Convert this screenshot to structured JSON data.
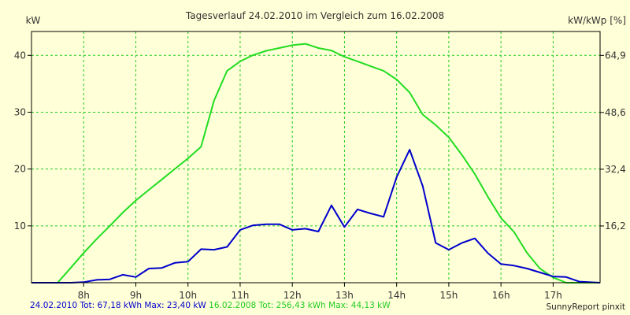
{
  "chart_data": {
    "type": "line",
    "title": "Tagesverlauf 24.02.2010 im Vergleich zum 16.02.2008",
    "y_left_unit": "kW",
    "y_right_unit": "kW/kWp [%]",
    "x_ticks": [
      "8h",
      "9h",
      "10h",
      "11h",
      "12h",
      "13h",
      "14h",
      "15h",
      "16h",
      "17h"
    ],
    "y_left_ticks": [
      "10",
      "20",
      "30",
      "40"
    ],
    "y_right_ticks": [
      "16,2",
      "32,4",
      "48,6",
      "64,9"
    ],
    "xlim": [
      7.0,
      17.9
    ],
    "ylim": [
      0,
      44.2
    ],
    "grid": true,
    "series": [
      {
        "name": "24.02.2010",
        "color": "#0000cc",
        "x": [
          7.0,
          7.5,
          7.75,
          8.0,
          8.25,
          8.5,
          8.75,
          9.0,
          9.25,
          9.5,
          9.75,
          10.0,
          10.25,
          10.5,
          10.75,
          11.0,
          11.25,
          11.5,
          11.75,
          12.0,
          12.25,
          12.5,
          12.75,
          13.0,
          13.25,
          13.5,
          13.75,
          14.0,
          14.25,
          14.5,
          14.75,
          15.0,
          15.25,
          15.5,
          15.75,
          16.0,
          16.25,
          16.5,
          16.75,
          17.0,
          17.25,
          17.5,
          17.9
        ],
        "y": [
          0,
          0,
          0,
          0.1,
          0.5,
          0.6,
          1.4,
          1.0,
          2.5,
          2.6,
          3.5,
          3.7,
          5.9,
          5.8,
          6.3,
          9.3,
          10.1,
          10.3,
          10.3,
          9.3,
          9.5,
          9.0,
          13.6,
          9.8,
          12.9,
          12.2,
          11.6,
          18.6,
          23.4,
          17.0,
          7.0,
          5.8,
          7.0,
          7.8,
          5.2,
          3.3,
          3.0,
          2.5,
          1.8,
          1.1,
          1.0,
          0.2,
          0
        ],
        "legend_text": "24.02.2010 Tot: 67,18 kWh Max: 23,40 kW"
      },
      {
        "name": "16.02.2008",
        "color": "#22dd22",
        "x": [
          7.0,
          7.5,
          7.75,
          8.0,
          8.25,
          8.5,
          8.75,
          9.0,
          9.25,
          9.5,
          9.75,
          10.0,
          10.25,
          10.5,
          10.75,
          11.0,
          11.25,
          11.5,
          11.75,
          12.0,
          12.25,
          12.5,
          12.75,
          13.0,
          13.25,
          13.5,
          13.75,
          14.0,
          14.25,
          14.5,
          14.75,
          15.0,
          15.25,
          15.5,
          15.75,
          16.0,
          16.25,
          16.5,
          16.75,
          17.0,
          17.25,
          17.5,
          17.9
        ],
        "y": [
          0,
          0,
          4.2,
          8.5,
          12.5,
          16.2,
          20.0,
          23.5,
          26.5,
          29.5,
          32.5,
          35.5,
          38.8,
          52.0,
          60.5,
          63.2,
          65.0,
          66.2,
          67.0,
          67.8,
          68.2,
          67.0,
          66.3,
          64.5,
          63.2,
          61.8,
          60.5,
          58.0,
          54.3,
          48.0,
          45.0,
          41.5,
          36.5,
          31.0,
          24.5,
          18.5,
          14.5,
          8.5,
          4.0,
          1.5,
          0,
          0,
          0
        ],
        "y_axis": "right",
        "legend_text": "16.02.2008 Tot: 256,43 kWh Max: 44,13 kW"
      }
    ]
  },
  "footer": {
    "series1": "24.02.2010 Tot: 67,18 kWh Max: 23,40 kW",
    "series2": "16.02.2008 Tot: 256,43 kWh Max: 44,13 kW",
    "credit": "SunnyReport pinxit"
  },
  "colors": {
    "background": "#ffffd8",
    "grid": "#22cc22",
    "axis": "#000000"
  }
}
